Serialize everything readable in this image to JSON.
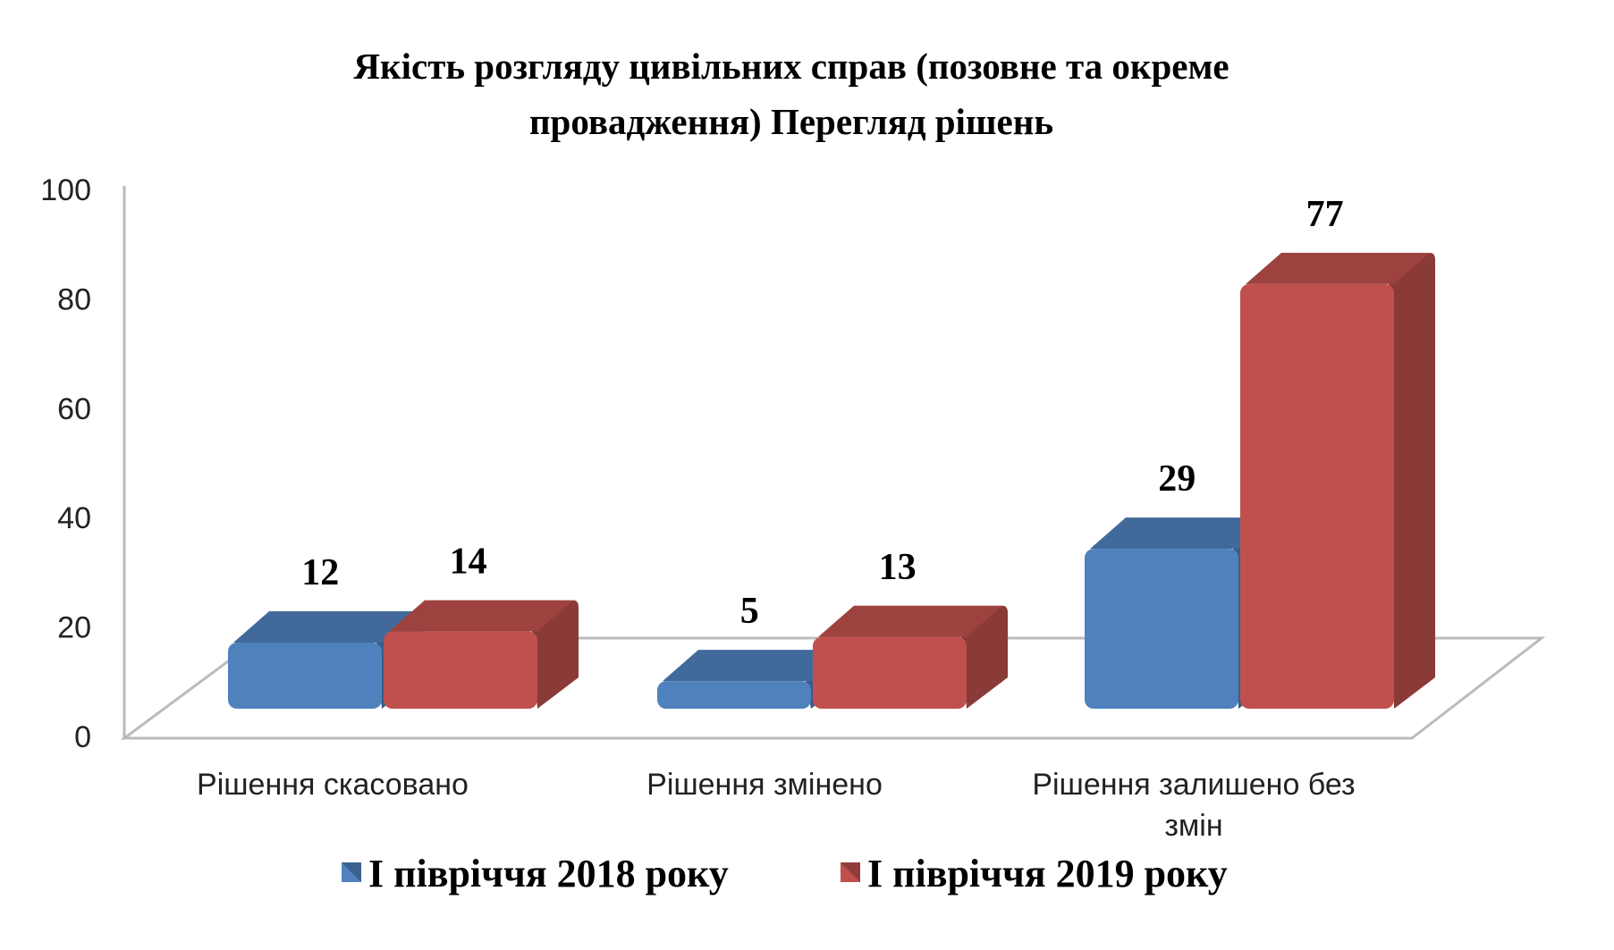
{
  "chart_data": {
    "type": "bar",
    "title_lines": [
      "Якість розгляду цивільних справ (позовне та окреме",
      "провадження) Перегляд рішень"
    ],
    "categories": [
      "Рішення скасовано",
      "Рішення змінено",
      "Рішення залишено  без змін"
    ],
    "category_lines": [
      [
        "Рішення скасовано"
      ],
      [
        "Рішення змінено"
      ],
      [
        "Рішення залишено  без",
        "змін"
      ]
    ],
    "series": [
      {
        "name": "І півріччя 2018 року",
        "values": [
          12,
          5,
          29
        ],
        "color": "#4F81BD"
      },
      {
        "name": "І півріччя 2019 року",
        "values": [
          14,
          13,
          77
        ],
        "color": "#C0504D"
      }
    ],
    "yticks": [
      0,
      20,
      40,
      60,
      80,
      100
    ],
    "ylim": [
      0,
      100
    ],
    "xlabel": "",
    "ylabel": "",
    "legend_position": "bottom",
    "style": "3d-clustered-column"
  }
}
